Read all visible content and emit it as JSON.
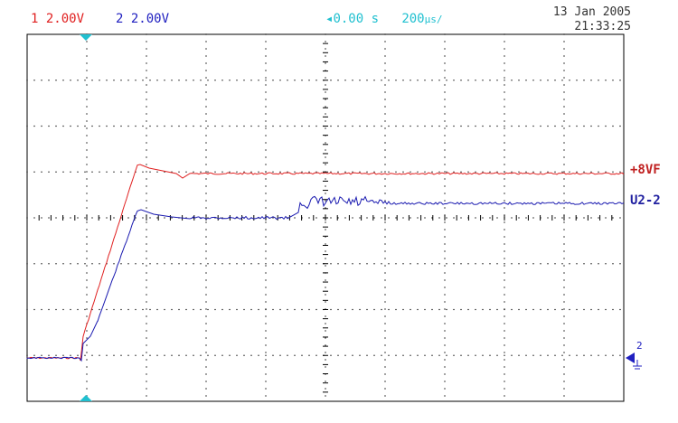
{
  "header": {
    "ch1_num": "1",
    "ch1_scale": "2.00V",
    "ch2_num": "2",
    "ch2_scale": "2.00V",
    "time_offset": "0.00 s",
    "time_scale": "200",
    "time_unit": "µs/",
    "date": "13 Jan 2005",
    "time": "21:33:25"
  },
  "traces": {
    "ch1_label": "+8VF",
    "ch2_label": "U2-2",
    "ch2_ground_marker": "2"
  },
  "colors": {
    "ch1": "#e02020",
    "ch2": "#1a1ab0",
    "marker": "#20c0d0",
    "grid": "#000000"
  }
}
